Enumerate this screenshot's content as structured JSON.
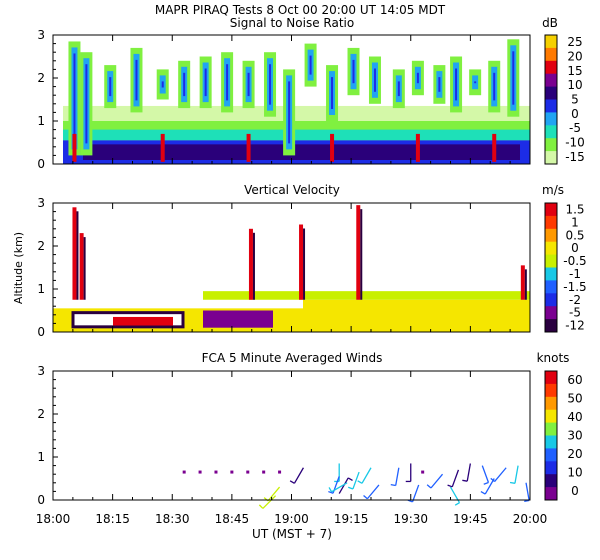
{
  "header": {
    "title": "MAPR PIRAQ Tests   8 Oct 00   20:00 UT   14:05   MDT"
  },
  "chart_data": [
    {
      "type": "heatmap",
      "title": "Signal to Noise Ratio",
      "unit": "dB",
      "ylim": [
        0,
        3
      ],
      "y_ticks": [
        "0",
        "1",
        "2",
        "3"
      ],
      "colorbar": {
        "labels": [
          "25",
          "20",
          "15",
          "10",
          "5",
          "0",
          "-5",
          "-10",
          "-15"
        ],
        "colors": [
          "#f5d000",
          "#ff7a00",
          "#e10010",
          "#7a0090",
          "#2a007a",
          "#1c2ce6",
          "#21a4f2",
          "#1ee0b8",
          "#80f040",
          "#d4f8a8"
        ]
      },
      "base_band_km": [
        0,
        0.55
      ],
      "plumes": [
        {
          "t": 0.045,
          "bottom": 0.2,
          "top": 2.85
        },
        {
          "t": 0.07,
          "bottom": 0.2,
          "top": 2.6
        },
        {
          "t": 0.12,
          "bottom": 1.3,
          "top": 2.3
        },
        {
          "t": 0.175,
          "bottom": 1.2,
          "top": 2.7
        },
        {
          "t": 0.23,
          "bottom": 1.5,
          "top": 2.2
        },
        {
          "t": 0.275,
          "bottom": 1.3,
          "top": 2.4
        },
        {
          "t": 0.32,
          "bottom": 1.3,
          "top": 2.5
        },
        {
          "t": 0.365,
          "bottom": 1.2,
          "top": 2.6
        },
        {
          "t": 0.41,
          "bottom": 1.3,
          "top": 2.4
        },
        {
          "t": 0.455,
          "bottom": 1.1,
          "top": 2.6
        },
        {
          "t": 0.495,
          "bottom": 0.2,
          "top": 2.2
        },
        {
          "t": 0.54,
          "bottom": 1.8,
          "top": 2.8
        },
        {
          "t": 0.585,
          "bottom": 1.0,
          "top": 2.3
        },
        {
          "t": 0.63,
          "bottom": 1.6,
          "top": 2.7
        },
        {
          "t": 0.675,
          "bottom": 1.4,
          "top": 2.5
        },
        {
          "t": 0.725,
          "bottom": 1.3,
          "top": 2.2
        },
        {
          "t": 0.765,
          "bottom": 1.6,
          "top": 2.4
        },
        {
          "t": 0.81,
          "bottom": 1.4,
          "top": 2.3
        },
        {
          "t": 0.845,
          "bottom": 1.2,
          "top": 2.5
        },
        {
          "t": 0.885,
          "bottom": 1.6,
          "top": 2.2
        },
        {
          "t": 0.925,
          "bottom": 1.2,
          "top": 2.4
        },
        {
          "t": 0.965,
          "bottom": 1.1,
          "top": 2.9
        }
      ]
    },
    {
      "type": "heatmap",
      "title": "Vertical Velocity",
      "unit": "m/s",
      "ylabel": "Altitude (km)",
      "ylim": [
        0,
        3
      ],
      "y_ticks": [
        "0",
        "1",
        "2",
        "3"
      ],
      "colorbar": {
        "labels": [
          "1.5",
          "1",
          "0.5",
          "0",
          "-0.5",
          "-1",
          "-1.5",
          "-2",
          "-5",
          "-12"
        ],
        "colors": [
          "#e10010",
          "#ff3a00",
          "#ff9900",
          "#f5e600",
          "#c8f000",
          "#18c8e6",
          "#2060ff",
          "#1c2ce6",
          "#7a0090",
          "#2a0040"
        ]
      },
      "surface_layer_top_km": 0.75,
      "columns": [
        {
          "t": 0.045,
          "top": 2.9
        },
        {
          "t": 0.06,
          "top": 2.3
        },
        {
          "t": 0.415,
          "top": 2.4
        },
        {
          "t": 0.52,
          "top": 2.5
        },
        {
          "t": 0.64,
          "top": 2.95
        },
        {
          "t": 0.985,
          "top": 1.55
        }
      ]
    },
    {
      "type": "scatter",
      "title": "FCA 5 Minute Averaged Winds",
      "unit": "knots",
      "ylim": [
        0,
        3
      ],
      "y_ticks": [
        "0",
        "1",
        "2",
        "3"
      ],
      "x_ticks": [
        "18:00",
        "18:15",
        "18:30",
        "18:45",
        "19:00",
        "19:15",
        "19:30",
        "19:45",
        "20:00"
      ],
      "xlabel": "UT  (MST + 7)",
      "colorbar": {
        "labels": [
          "60",
          "50",
          "40",
          "30",
          "20",
          "10",
          "0"
        ],
        "colors": [
          "#e10010",
          "#ff3a00",
          "#ff9900",
          "#f5e600",
          "#80f040",
          "#18c8e6",
          "#2060ff",
          "#1c2ce6",
          "#2a007a",
          "#7a0090"
        ]
      },
      "calm_points": [
        {
          "time": "18:33",
          "alt": 0.65
        },
        {
          "time": "18:37",
          "alt": 0.65
        },
        {
          "time": "18:41",
          "alt": 0.65
        },
        {
          "time": "18:45",
          "alt": 0.65
        },
        {
          "time": "18:49",
          "alt": 0.65
        },
        {
          "time": "18:53",
          "alt": 0.65
        },
        {
          "time": "18:57",
          "alt": 0.65
        },
        {
          "time": "19:33",
          "alt": 0.65
        }
      ],
      "barbs": [
        {
          "time": "18:56",
          "alt": 0.1,
          "speed": 30,
          "dir": 225
        },
        {
          "time": "18:57",
          "alt": 0.3,
          "speed": 30,
          "dir": 220
        },
        {
          "time": "19:03",
          "alt": 0.75,
          "speed": 5,
          "dir": 210
        },
        {
          "time": "19:12",
          "alt": 0.85,
          "speed": 15,
          "dir": 180
        },
        {
          "time": "19:12",
          "alt": 0.55,
          "speed": 10,
          "dir": 200
        },
        {
          "time": "19:12",
          "alt": 0.15,
          "speed": 5,
          "dir": 30
        },
        {
          "time": "19:14",
          "alt": 0.4,
          "speed": 15,
          "dir": 240
        },
        {
          "time": "19:17",
          "alt": 0.65,
          "speed": 20,
          "dir": 200
        },
        {
          "time": "19:20",
          "alt": 0.75,
          "speed": 20,
          "dir": 210
        },
        {
          "time": "19:22",
          "alt": 0.35,
          "speed": 10,
          "dir": 220
        },
        {
          "time": "19:27",
          "alt": 0.75,
          "speed": 10,
          "dir": 190
        },
        {
          "time": "19:30",
          "alt": 0.85,
          "speed": 5,
          "dir": 180
        },
        {
          "time": "19:32",
          "alt": 0.35,
          "speed": 10,
          "dir": 200
        },
        {
          "time": "19:38",
          "alt": 0.6,
          "speed": 10,
          "dir": 220
        },
        {
          "time": "19:40",
          "alt": 0.3,
          "speed": 15,
          "dir": 150
        },
        {
          "time": "19:42",
          "alt": 0.7,
          "speed": 5,
          "dir": 200
        },
        {
          "time": "19:45",
          "alt": 0.85,
          "speed": 5,
          "dir": 190
        },
        {
          "time": "19:48",
          "alt": 0.8,
          "speed": 10,
          "dir": 160
        },
        {
          "time": "19:51",
          "alt": 0.5,
          "speed": 10,
          "dir": 210
        },
        {
          "time": "19:54",
          "alt": 0.75,
          "speed": 10,
          "dir": 220
        },
        {
          "time": "19:57",
          "alt": 0.8,
          "speed": 15,
          "dir": 190
        },
        {
          "time": "19:59",
          "alt": 0.4,
          "speed": 10,
          "dir": 170
        }
      ]
    }
  ]
}
